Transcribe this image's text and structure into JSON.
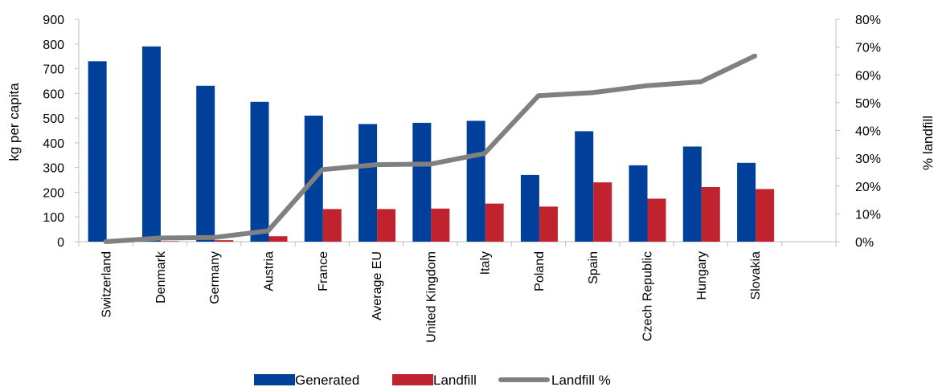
{
  "chart_data": {
    "type": "bar",
    "categories": [
      "Switzerland",
      "Denmark",
      "Germany",
      "Austria",
      "France",
      "Average EU",
      "United Kingdom",
      "Italy",
      "Poland",
      "Spain",
      "Czech Republic",
      "Hungary",
      "Slovakia"
    ],
    "series": [
      {
        "name": "Generated",
        "type": "bar",
        "axis": "left",
        "color": "#00409a",
        "values": [
          730,
          790,
          631,
          566,
          510,
          476,
          481,
          489,
          270,
          447,
          309,
          385,
          319
        ]
      },
      {
        "name": "Landfill",
        "type": "bar",
        "axis": "left",
        "color": "#c0222e",
        "values": [
          1,
          2,
          6,
          22,
          132,
          132,
          134,
          154,
          142,
          240,
          174,
          221,
          213
        ]
      },
      {
        "name": "Landfill %",
        "type": "line",
        "axis": "right",
        "color": "#808080",
        "values": [
          0,
          0.013,
          0.015,
          0.039,
          0.259,
          0.277,
          0.279,
          0.317,
          0.525,
          0.536,
          0.561,
          0.575,
          0.668
        ]
      }
    ],
    "ylabel": "kg per capita",
    "y2label": "% landfill",
    "ylim": [
      0,
      900
    ],
    "y2lim": [
      0,
      0.8
    ],
    "yticks": [
      "0",
      "100",
      "200",
      "300",
      "400",
      "500",
      "600",
      "700",
      "800",
      "900"
    ],
    "y2ticks": [
      "0%",
      "10%",
      "20%",
      "30%",
      "40%",
      "50%",
      "60%",
      "70%",
      "80%"
    ],
    "legend_position": "bottom",
    "grid": false
  }
}
